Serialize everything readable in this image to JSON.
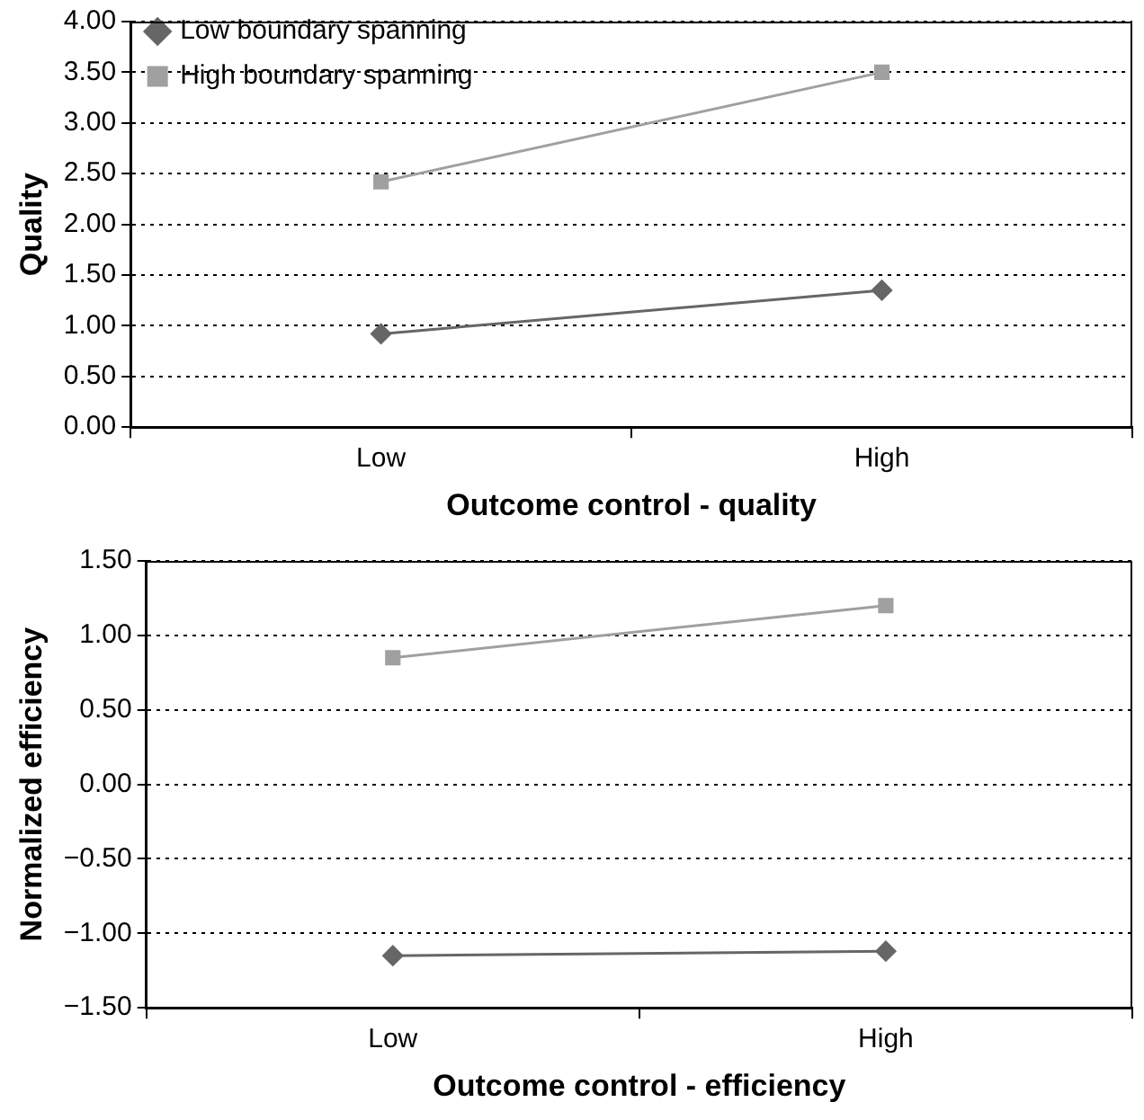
{
  "chart_data": [
    {
      "type": "line",
      "xlabel": "Outcome control - quality",
      "ylabel": "Quality",
      "categories": [
        "Low",
        "High"
      ],
      "series": [
        {
          "name": "Low boundary spanning",
          "color": "#666666",
          "marker": "diamond",
          "values": [
            0.92,
            1.35
          ]
        },
        {
          "name": "High boundary spanning",
          "color": "#a0a0a0",
          "marker": "square",
          "values": [
            2.42,
            3.5
          ]
        }
      ],
      "ylim": [
        0,
        4
      ],
      "yticks": [
        {
          "value": 0,
          "label": "0.00"
        },
        {
          "value": 0.5,
          "label": "0.50"
        },
        {
          "value": 1,
          "label": "1.00"
        },
        {
          "value": 1.5,
          "label": "1.50"
        },
        {
          "value": 2,
          "label": "2.00"
        },
        {
          "value": 2.5,
          "label": "2.50"
        },
        {
          "value": 3,
          "label": "3.00"
        },
        {
          "value": 3.5,
          "label": "3.50"
        },
        {
          "value": 4,
          "label": "4.00"
        }
      ],
      "grid": "y",
      "legend": "top left",
      "line_style": "solid"
    },
    {
      "type": "line",
      "xlabel": "Outcome control - efficiency",
      "ylabel": "Normalized efficiency",
      "categories": [
        "Low",
        "High"
      ],
      "series": [
        {
          "color": "#666666",
          "marker": "diamond",
          "values": [
            -1.15,
            -1.12
          ]
        },
        {
          "color": "#a0a0a0",
          "marker": "square",
          "values": [
            0.85,
            1.2
          ]
        }
      ],
      "ylim": [
        -1.5,
        1.5
      ],
      "yticks": [
        {
          "value": -1.5,
          "label": "−1.50"
        },
        {
          "value": -1,
          "label": "−1.00"
        },
        {
          "value": -0.5,
          "label": "−0.50"
        },
        {
          "value": 0,
          "label": "0.00"
        },
        {
          "value": 0.5,
          "label": "0.50"
        },
        {
          "value": 1,
          "label": "1.00"
        },
        {
          "value": 1.5,
          "label": "1.50"
        }
      ],
      "grid": "y",
      "line_style": "solid"
    }
  ]
}
